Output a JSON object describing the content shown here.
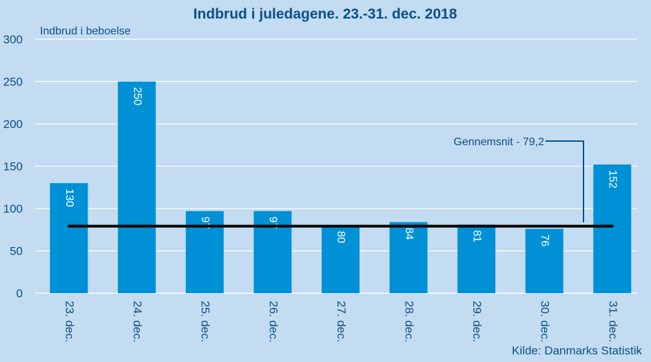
{
  "chart_data": {
    "type": "bar",
    "title": "Indbrud i juledagene. 23.-31. dec. 2018",
    "ylabel": "Indbrud i beboelse",
    "xlabel": "",
    "categories": [
      "23. dec.",
      "24. dec.",
      "25. dec.",
      "26. dec.",
      "27. dec.",
      "28. dec.",
      "29. dec.",
      "30. dec.",
      "31. dec."
    ],
    "values": [
      130,
      250,
      97,
      97,
      80,
      84,
      81,
      76,
      152
    ],
    "data_labels": [
      "130",
      "250",
      "97",
      "97",
      "80",
      "84",
      "81",
      "76",
      "152"
    ],
    "ylim": [
      0,
      300
    ],
    "yticks": [
      0,
      50,
      100,
      150,
      200,
      250,
      300
    ],
    "ytick_labels": [
      "0",
      "50",
      "100",
      "150",
      "200",
      "250",
      "300"
    ],
    "grid": true,
    "reference_line": {
      "label": "Gennemsnit - 79,2",
      "value": 79.2,
      "color": "#000000"
    },
    "source": "Kilde: Danmarks Statistik",
    "colors": {
      "background": "#c3dcf2",
      "bar": "#0090d6",
      "text": "#0b4f85",
      "grid": "#ffffff",
      "annotation_leader": "#0b4f85"
    }
  }
}
